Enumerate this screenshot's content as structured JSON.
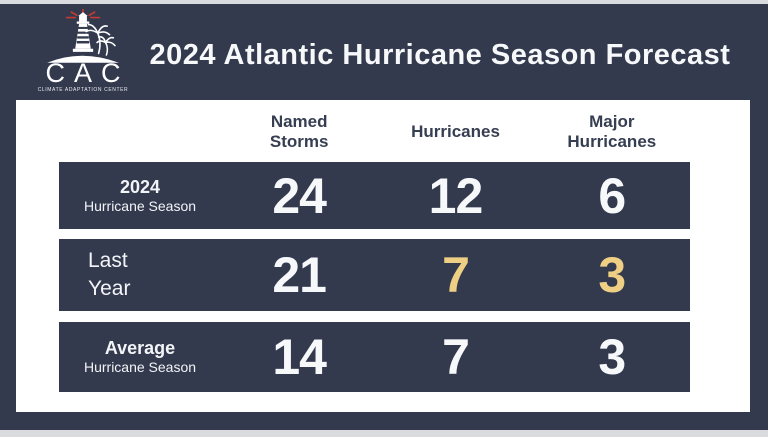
{
  "colors": {
    "navy": "#333a4e",
    "gold": "#eecf84",
    "page_bg": "#d9dbde",
    "text_light": "#f7f8fa"
  },
  "logo": {
    "acronym": "CAC",
    "tagline": "CLIMATE ADAPTATION CENTER"
  },
  "title": "2024 Atlantic Hurricane Season Forecast",
  "table": {
    "columns": [
      "Named\nStorms",
      "Hurricanes",
      "Major\nHurricanes"
    ],
    "rows": [
      {
        "label_lines": [
          "2024",
          "Hurricane Season"
        ],
        "values": [
          {
            "text": "24",
            "gold": false
          },
          {
            "text": "12",
            "gold": false
          },
          {
            "text": "6",
            "gold": false
          }
        ]
      },
      {
        "label_lines": [
          "Last",
          "Year"
        ],
        "values": [
          {
            "text": "21",
            "gold": false
          },
          {
            "text": "7",
            "gold": true
          },
          {
            "text": "3",
            "gold": true
          }
        ]
      },
      {
        "label_lines": [
          "Average",
          "Hurricane Season"
        ],
        "values": [
          {
            "text": "14",
            "gold": false
          },
          {
            "text": "7",
            "gold": false
          },
          {
            "text": "3",
            "gold": false
          }
        ]
      }
    ]
  },
  "chart_data": {
    "type": "table",
    "title": "2024 Atlantic Hurricane Season Forecast",
    "columns": [
      "Named Storms",
      "Hurricanes",
      "Major Hurricanes"
    ],
    "rows": [
      {
        "label": "2024 Hurricane Season",
        "values": [
          24,
          12,
          6
        ]
      },
      {
        "label": "Last Year",
        "values": [
          21,
          7,
          3
        ]
      },
      {
        "label": "Average Hurricane Season",
        "values": [
          14,
          7,
          3
        ]
      }
    ],
    "highlighted_values": {
      "row": "Last Year",
      "columns": [
        "Hurricanes",
        "Major Hurricanes"
      ],
      "highlight_color": "#eecf84"
    },
    "legend_position": "none",
    "grid": false
  }
}
